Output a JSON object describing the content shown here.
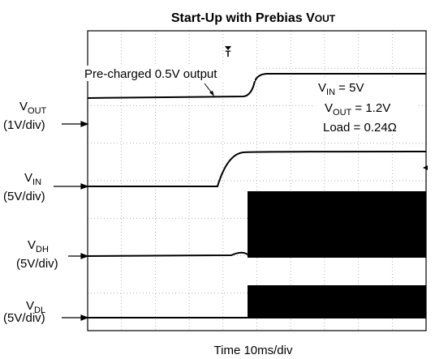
{
  "title": {
    "text": "Start-Up with Prebias V",
    "sub": "OUT"
  },
  "channels": [
    {
      "name": "V",
      "sub": "OUT",
      "scale": "(1V/div)"
    },
    {
      "name": "V",
      "sub": "IN",
      "scale": "(5V/div)"
    },
    {
      "name": "V",
      "sub": "DH",
      "scale": "(5V/div)"
    },
    {
      "name": "V",
      "sub": "DL",
      "scale": "(5V/div)"
    }
  ],
  "annotations": {
    "precharge": "Pre-charged 0.5V output",
    "conditions": [
      {
        "name": "V",
        "sub": "IN",
        "text": " = 5V"
      },
      {
        "name": "V",
        "sub": "OUT",
        "text": " = 1.2V"
      },
      {
        "name": "",
        "sub": "",
        "text": "Load = 0.24Ω"
      }
    ]
  },
  "trigger": "T",
  "x_label": "Time 10ms/div"
}
